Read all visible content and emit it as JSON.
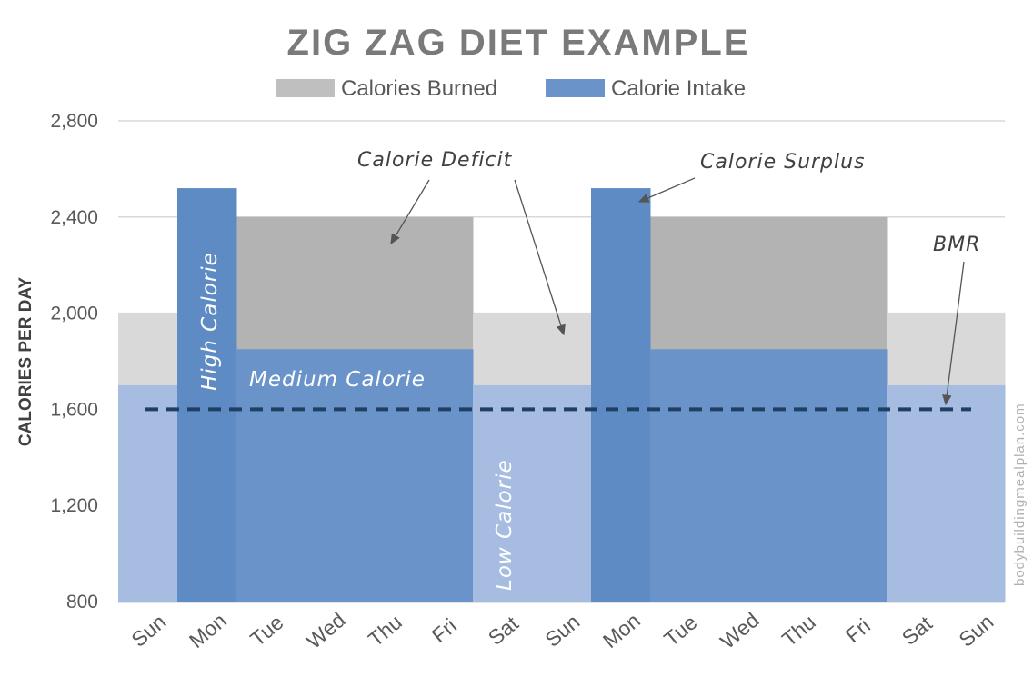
{
  "chart_data": {
    "type": "bar",
    "title": "ZIG ZAG DIET EXAMPLE",
    "xlabel": "",
    "ylabel": "CALORIES PER DAY",
    "ylim": [
      800,
      2800
    ],
    "yticks": [
      800,
      1200,
      1600,
      2000,
      2400,
      2800
    ],
    "ytick_labels": [
      "800",
      "1,200",
      "1,600",
      "2,000",
      "2,400",
      "2,800"
    ],
    "grid": "horizontal",
    "legend_position": "top",
    "categories": [
      "Sun",
      "Mon",
      "Tue",
      "Wed",
      "Thu",
      "Fri",
      "Sat",
      "Sun",
      "Mon",
      "Tue",
      "Wed",
      "Thu",
      "Fri",
      "Sat",
      "Sun"
    ],
    "series": [
      {
        "name": "Calories Burned",
        "color": "#bfbfbf",
        "values": [
          2000,
          2400,
          2400,
          2400,
          2400,
          2400,
          2000,
          2000,
          2400,
          2400,
          2400,
          2400,
          2400,
          2000,
          2000
        ]
      },
      {
        "name": "Calorie Intake",
        "color": "#6a93c9",
        "values": [
          1700,
          2520,
          1850,
          1850,
          1850,
          1850,
          1700,
          1700,
          2520,
          1850,
          1850,
          1850,
          1850,
          1700,
          1700
        ]
      }
    ],
    "reference_line": {
      "label": "BMR",
      "value": 1600,
      "style": "dashed",
      "color": "#1f3f63"
    },
    "annotations": {
      "deficit": "Calorie Deficit",
      "surplus": "Calorie Surplus",
      "high": "High Calorie",
      "medium": "Medium Calorie",
      "low": "Low Calorie"
    }
  },
  "watermark": "bodybuildingmealplan.com"
}
